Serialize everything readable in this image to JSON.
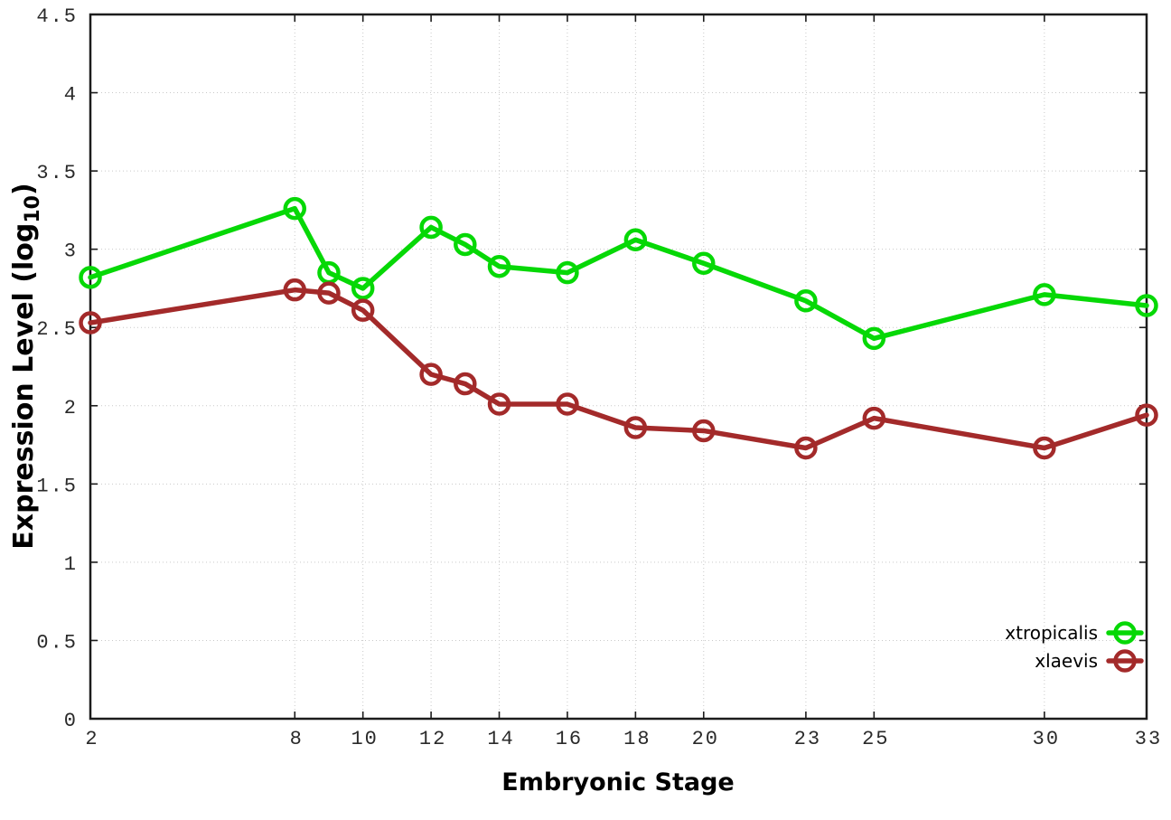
{
  "figure": {
    "background": "#ffffff",
    "ylabel_prefix": "Expression Level (log",
    "ylabel_sub": "10",
    "ylabel_suffix": ")"
  },
  "chart_data": {
    "type": "line",
    "title": "",
    "xlabel": "Embryonic Stage",
    "ylabel": "Expression Level (log10)",
    "x": [
      2,
      8,
      9,
      10,
      12,
      13,
      14,
      16,
      18,
      20,
      23,
      25,
      30,
      33
    ],
    "series": [
      {
        "name": "xtropicalis",
        "color": "#06d806",
        "values": [
          2.82,
          3.26,
          2.85,
          2.75,
          3.14,
          3.03,
          2.89,
          2.85,
          3.06,
          2.91,
          2.67,
          2.43,
          2.71,
          2.64
        ]
      },
      {
        "name": "xlaevis",
        "color": "#a32a2a",
        "values": [
          2.53,
          2.74,
          2.72,
          2.61,
          2.2,
          2.14,
          2.01,
          2.01,
          1.86,
          1.84,
          1.73,
          1.92,
          1.73,
          1.94
        ]
      }
    ],
    "x_ticks": {
      "values": [
        2,
        8,
        10,
        12,
        14,
        16,
        18,
        20,
        23,
        25,
        30,
        33
      ],
      "labels": [
        "2",
        "8",
        "10",
        "12",
        "14",
        "16",
        "18",
        "20",
        "23",
        "25",
        "30",
        "33"
      ]
    },
    "y_ticks": {
      "values": [
        0,
        0.5,
        1,
        1.5,
        2,
        2.5,
        3,
        3.5,
        4,
        4.5
      ],
      "labels": [
        "0",
        "0.5",
        "1",
        "1.5",
        "2",
        "2.5",
        "3",
        "3.5",
        "4",
        "4.5"
      ]
    },
    "xlim": [
      2,
      33
    ],
    "ylim": [
      0,
      4.5
    ],
    "grid": true,
    "grid_color": "#c9c9c9",
    "border_color": "#1c1c1c",
    "legend_position": "bottom-right",
    "marker": "open-circle"
  }
}
